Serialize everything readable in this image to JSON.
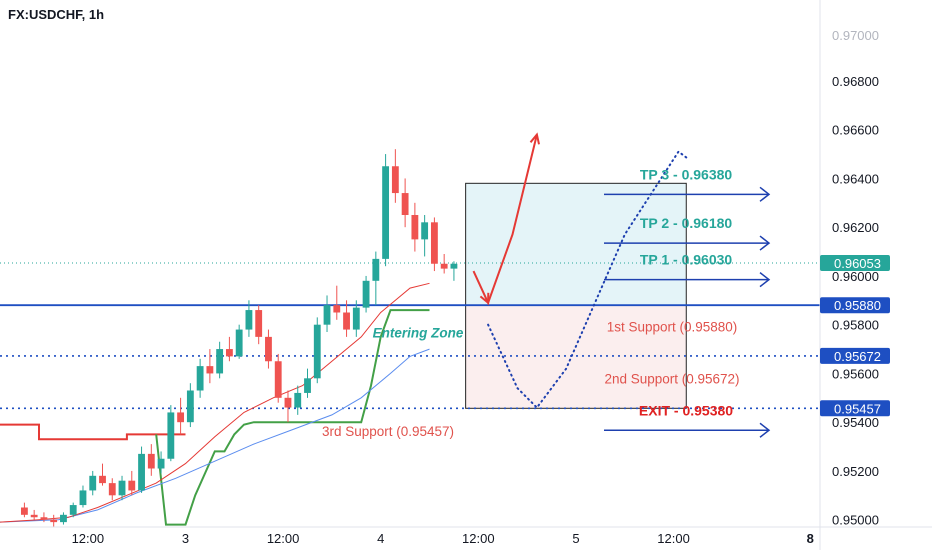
{
  "header": {
    "symbol": "FX:USDCHF, 1h",
    "currency": "CHF"
  },
  "colors": {
    "up": "#26a69a",
    "down": "#ef5350",
    "green_line": "#43a047",
    "red_line": "#e53935",
    "blue_line": "#5b8def",
    "level_blue": "#1e4fc2",
    "tp_text": "#26a69a",
    "support_text": "#e0524c",
    "exit_text": "#e02222",
    "arrow_blue": "#1e40af",
    "up_zone": "#e4f4f8",
    "down_zone": "#fbeeee",
    "price_tag": "#26a69a"
  },
  "chart_data": {
    "type": "candlestick",
    "symbol": "FX:USDCHF",
    "timeframe": "1h",
    "y_unit": "CHF",
    "ylim": [
      0.9497,
      0.9705
    ],
    "y_ticks": [
      0.95,
      0.952,
      0.954,
      0.956,
      0.958,
      0.96,
      0.962,
      0.964,
      0.966,
      0.968
    ],
    "y_tick_labels": [
      "0.95000",
      "0.95200",
      "0.95400",
      "0.95600",
      "0.95800",
      "0.96000",
      "0.96200",
      "0.96400",
      "0.96600",
      "0.96800"
    ],
    "y_top_partial_label": "0.97000",
    "x_ticks": [
      {
        "label": "12:00",
        "bar": 7
      },
      {
        "label": "3",
        "bar": 17
      },
      {
        "label": "12:00",
        "bar": 27
      },
      {
        "label": "4",
        "bar": 37
      },
      {
        "label": "12:00",
        "bar": 47
      },
      {
        "label": "5",
        "bar": 57
      },
      {
        "label": "12:00",
        "bar": 67
      },
      {
        "label": "8",
        "bar": 81
      }
    ],
    "bar_x_start": -2,
    "bar_x_end": 82,
    "candles": [
      [
        0.9505,
        0.9507,
        0.9501,
        0.9502
      ],
      [
        0.9502,
        0.9504,
        0.95,
        0.9501
      ],
      [
        0.9501,
        0.9503,
        0.9499,
        0.95
      ],
      [
        0.95,
        0.9502,
        0.9497,
        0.9499
      ],
      [
        0.9499,
        0.9503,
        0.9498,
        0.9502
      ],
      [
        0.9502,
        0.9507,
        0.9501,
        0.9506
      ],
      [
        0.9506,
        0.9514,
        0.9505,
        0.9512
      ],
      [
        0.9512,
        0.952,
        0.951,
        0.9518
      ],
      [
        0.9518,
        0.9523,
        0.9514,
        0.9515
      ],
      [
        0.9515,
        0.9517,
        0.9508,
        0.951
      ],
      [
        0.951,
        0.9518,
        0.9508,
        0.9516
      ],
      [
        0.9516,
        0.952,
        0.951,
        0.9512
      ],
      [
        0.9512,
        0.953,
        0.9511,
        0.9527
      ],
      [
        0.9527,
        0.9531,
        0.9518,
        0.9521
      ],
      [
        0.9521,
        0.9528,
        0.9519,
        0.9525
      ],
      [
        0.9525,
        0.9547,
        0.9524,
        0.9544
      ],
      [
        0.9544,
        0.955,
        0.9535,
        0.954
      ],
      [
        0.954,
        0.9556,
        0.9538,
        0.9553
      ],
      [
        0.9553,
        0.9566,
        0.955,
        0.9563
      ],
      [
        0.9563,
        0.957,
        0.9556,
        0.956
      ],
      [
        0.956,
        0.9573,
        0.9558,
        0.957
      ],
      [
        0.957,
        0.9575,
        0.9565,
        0.9567
      ],
      [
        0.9567,
        0.958,
        0.9566,
        0.9578
      ],
      [
        0.9578,
        0.959,
        0.9575,
        0.9586
      ],
      [
        0.9586,
        0.9588,
        0.9572,
        0.9575
      ],
      [
        0.9575,
        0.9578,
        0.9562,
        0.9565
      ],
      [
        0.9565,
        0.9568,
        0.9548,
        0.955
      ],
      [
        0.955,
        0.9553,
        0.954,
        0.9546
      ],
      [
        0.9546,
        0.9555,
        0.9543,
        0.9552
      ],
      [
        0.9552,
        0.9562,
        0.955,
        0.9558
      ],
      [
        0.9558,
        0.9583,
        0.9556,
        0.958
      ],
      [
        0.958,
        0.9592,
        0.9577,
        0.9588
      ],
      [
        0.9588,
        0.9596,
        0.9582,
        0.9585
      ],
      [
        0.9585,
        0.959,
        0.9575,
        0.9578
      ],
      [
        0.9578,
        0.959,
        0.9575,
        0.9587
      ],
      [
        0.9587,
        0.96,
        0.9585,
        0.9598
      ],
      [
        0.9598,
        0.961,
        0.9588,
        0.9607
      ],
      [
        0.9607,
        0.965,
        0.9604,
        0.9645
      ],
      [
        0.9645,
        0.9652,
        0.963,
        0.9634
      ],
      [
        0.9634,
        0.964,
        0.962,
        0.9625
      ],
      [
        0.9625,
        0.963,
        0.961,
        0.9615
      ],
      [
        0.9615,
        0.9625,
        0.9608,
        0.9622
      ],
      [
        0.9622,
        0.9624,
        0.9602,
        0.9605
      ],
      [
        0.9605,
        0.9609,
        0.9601,
        0.9603
      ],
      [
        0.9603,
        0.9606,
        0.9598,
        0.9605
      ]
    ],
    "red_step_line": [
      [
        -2,
        0.9539
      ],
      [
        0,
        0.9539
      ],
      [
        2,
        0.9533
      ],
      [
        10,
        0.9533
      ],
      [
        11,
        0.9535
      ],
      [
        14,
        0.9535
      ],
      [
        14,
        0.9535
      ],
      [
        17,
        0.9535
      ]
    ],
    "green_step_line": [
      [
        14,
        0.9535
      ],
      [
        15,
        0.9498
      ],
      [
        17,
        0.9498
      ],
      [
        18,
        0.951
      ],
      [
        20,
        0.9528
      ],
      [
        21,
        0.9528
      ],
      [
        22,
        0.9535
      ],
      [
        23,
        0.9539
      ],
      [
        24,
        0.954
      ],
      [
        35,
        0.954
      ],
      [
        36,
        0.9555
      ],
      [
        37,
        0.9575
      ],
      [
        38,
        0.9586
      ],
      [
        42,
        0.9586
      ]
    ],
    "red_ma": [
      [
        -2,
        0.9499
      ],
      [
        2,
        0.95
      ],
      [
        5,
        0.9501
      ],
      [
        8,
        0.9505
      ],
      [
        11,
        0.951
      ],
      [
        14,
        0.9515
      ],
      [
        17,
        0.9523
      ],
      [
        20,
        0.9534
      ],
      [
        23,
        0.9544
      ],
      [
        26,
        0.955
      ],
      [
        29,
        0.9555
      ],
      [
        32,
        0.9565
      ],
      [
        35,
        0.9575
      ],
      [
        37,
        0.9585
      ],
      [
        40,
        0.9595
      ],
      [
        42,
        0.9597
      ]
    ],
    "blue_ma": [
      [
        -2,
        0.9499
      ],
      [
        4,
        0.95
      ],
      [
        8,
        0.9504
      ],
      [
        12,
        0.9511
      ],
      [
        16,
        0.9517
      ],
      [
        20,
        0.9524
      ],
      [
        24,
        0.9531
      ],
      [
        28,
        0.9537
      ],
      [
        32,
        0.9543
      ],
      [
        35,
        0.955
      ],
      [
        38,
        0.956
      ],
      [
        40,
        0.9567
      ],
      [
        42,
        0.957
      ]
    ],
    "horizontal_levels": [
      {
        "value": 0.9588,
        "label": "0.95880",
        "style": "solid"
      },
      {
        "value": 0.95672,
        "label": "0.95672",
        "style": "dotted"
      },
      {
        "value": 0.95457,
        "label": "0.95457",
        "style": "dotted"
      }
    ],
    "current_price": {
      "value": 0.96053,
      "label": "0.96053"
    },
    "zones": [
      {
        "kind": "target",
        "bars": [
          45.7,
          68.3
        ],
        "from": 0.9588,
        "to": 0.9638
      },
      {
        "kind": "stop",
        "bars": [
          45.7,
          68.3
        ],
        "from": 0.95457,
        "to": 0.9588
      }
    ],
    "annotations": [
      {
        "text": "TP 3 - 0.96380",
        "value": 0.9638,
        "kind": "tp"
      },
      {
        "text": "TP 2 - 0.96180",
        "value": 0.9618,
        "kind": "tp"
      },
      {
        "text": "TP 1 - 0.96030",
        "value": 0.9603,
        "kind": "tp"
      },
      {
        "text": "1st Support (0.95880)",
        "value": 0.95866,
        "kind": "support"
      },
      {
        "text": "2nd Support (0.95672)",
        "value": 0.95654,
        "kind": "support"
      },
      {
        "text": "3rd Support (0.95457)",
        "value": 0.95437,
        "kind": "support_left"
      },
      {
        "text": "EXIT - 0.95380",
        "value": 0.95412,
        "kind": "exit"
      },
      {
        "text": "Entering Zone",
        "value": 0.9576,
        "kind": "entry"
      }
    ],
    "projection_red": [
      [
        46.5,
        0.9602
      ],
      [
        48,
        0.9589
      ],
      [
        50.5,
        0.9617
      ],
      [
        53,
        0.9658
      ]
    ],
    "projection_dotted": [
      [
        48,
        0.958
      ],
      [
        51,
        0.9554
      ],
      [
        53,
        0.9546
      ],
      [
        56,
        0.9562
      ],
      [
        62,
        0.9617
      ],
      [
        67.5,
        0.9651
      ],
      [
        68.5,
        0.9648
      ]
    ]
  }
}
